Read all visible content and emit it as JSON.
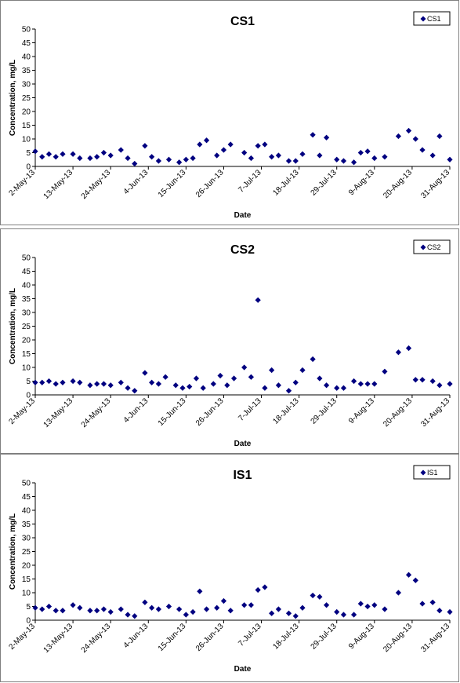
{
  "chart_data": [
    {
      "type": "scatter",
      "title": "CS1",
      "xlabel": "Date",
      "ylabel": "Concentration, mg/L",
      "ylim": [
        0,
        50
      ],
      "yticks": [
        0,
        5,
        10,
        15,
        20,
        25,
        30,
        35,
        40,
        45,
        50
      ],
      "xlim": [
        "2013-05-02",
        "2013-08-31"
      ],
      "xticks": [
        "2-May-13",
        "13-May-13",
        "24-May-13",
        "4-Jun-13",
        "15-Jun-13",
        "26-Jun-13",
        "7-Jul-13",
        "18-Jul-13",
        "29-Jul-13",
        "9-Aug-13",
        "20-Aug-13",
        "31-Aug-13"
      ],
      "grid": false,
      "legend": "top-right",
      "marker_color": "#000080",
      "series": [
        {
          "name": "CS1",
          "x": [
            "2013-05-02",
            "2013-05-04",
            "2013-05-06",
            "2013-05-08",
            "2013-05-10",
            "2013-05-13",
            "2013-05-15",
            "2013-05-18",
            "2013-05-20",
            "2013-05-22",
            "2013-05-24",
            "2013-05-27",
            "2013-05-29",
            "2013-05-31",
            "2013-06-03",
            "2013-06-05",
            "2013-06-07",
            "2013-06-10",
            "2013-06-13",
            "2013-06-15",
            "2013-06-17",
            "2013-06-19",
            "2013-06-21",
            "2013-06-24",
            "2013-06-26",
            "2013-06-28",
            "2013-07-02",
            "2013-07-04",
            "2013-07-06",
            "2013-07-08",
            "2013-07-10",
            "2013-07-12",
            "2013-07-15",
            "2013-07-17",
            "2013-07-19",
            "2013-07-22",
            "2013-07-24",
            "2013-07-26",
            "2013-07-29",
            "2013-07-31",
            "2013-08-03",
            "2013-08-05",
            "2013-08-07",
            "2013-08-09",
            "2013-08-12",
            "2013-08-16",
            "2013-08-19",
            "2013-08-21",
            "2013-08-23",
            "2013-08-26",
            "2013-08-28",
            "2013-08-31"
          ],
          "y": [
            5.5,
            3.5,
            4.5,
            3.5,
            4.5,
            4.5,
            3,
            3,
            3.5,
            5,
            4,
            6,
            3,
            1,
            7.5,
            3.5,
            2,
            2.5,
            1.5,
            2.5,
            3,
            8,
            9.5,
            4,
            6,
            8,
            5,
            3,
            7.5,
            8,
            3.5,
            4,
            2,
            2,
            4.5,
            11.5,
            4,
            10.5,
            2.5,
            2,
            1.5,
            5,
            5.5,
            3,
            3.5,
            11,
            13,
            10,
            6,
            4,
            11,
            2.5
          ]
        }
      ]
    },
    {
      "type": "scatter",
      "title": "CS2",
      "xlabel": "Date",
      "ylabel": "Concentration, mg/L",
      "ylim": [
        0,
        50
      ],
      "yticks": [
        0,
        5,
        10,
        15,
        20,
        25,
        30,
        35,
        40,
        45,
        50
      ],
      "xlim": [
        "2013-05-02",
        "2013-08-31"
      ],
      "xticks": [
        "2-May-13",
        "13-May-13",
        "24-May-13",
        "4-Jun-13",
        "15-Jun-13",
        "26-Jun-13",
        "7-Jul-13",
        "18-Jul-13",
        "29-Jul-13",
        "9-Aug-13",
        "20-Aug-13",
        "31-Aug-13"
      ],
      "grid": false,
      "legend": "top-right",
      "marker_color": "#000080",
      "series": [
        {
          "name": "CS2",
          "x": [
            "2013-05-02",
            "2013-05-04",
            "2013-05-06",
            "2013-05-08",
            "2013-05-10",
            "2013-05-13",
            "2013-05-15",
            "2013-05-18",
            "2013-05-20",
            "2013-05-22",
            "2013-05-24",
            "2013-05-27",
            "2013-05-29",
            "2013-05-31",
            "2013-06-03",
            "2013-06-05",
            "2013-06-07",
            "2013-06-09",
            "2013-06-12",
            "2013-06-14",
            "2013-06-16",
            "2013-06-18",
            "2013-06-20",
            "2013-06-23",
            "2013-06-25",
            "2013-06-27",
            "2013-06-29",
            "2013-07-02",
            "2013-07-04",
            "2013-07-06",
            "2013-07-08",
            "2013-07-10",
            "2013-07-12",
            "2013-07-15",
            "2013-07-17",
            "2013-07-19",
            "2013-07-22",
            "2013-07-24",
            "2013-07-26",
            "2013-07-29",
            "2013-07-31",
            "2013-08-03",
            "2013-08-05",
            "2013-08-07",
            "2013-08-09",
            "2013-08-12",
            "2013-08-16",
            "2013-08-19",
            "2013-08-21",
            "2013-08-23",
            "2013-08-26",
            "2013-08-28",
            "2013-08-31"
          ],
          "y": [
            4.5,
            4.5,
            5,
            4,
            4.5,
            5,
            4.5,
            3.5,
            4,
            4,
            3.5,
            4.5,
            2.5,
            1.5,
            8,
            4.5,
            4,
            6.5,
            3.5,
            2.5,
            3,
            6,
            2.5,
            4,
            7,
            3.5,
            6,
            10,
            6.5,
            34.5,
            2.5,
            9,
            3.5,
            1.5,
            4.5,
            9,
            13,
            6,
            3.5,
            2.5,
            2.5,
            5,
            4,
            4,
            4,
            8.5,
            15.5,
            17,
            5.5,
            5.5,
            5,
            3.5,
            4
          ]
        }
      ]
    },
    {
      "type": "scatter",
      "title": "IS1",
      "xlabel": "Date",
      "ylabel": "Concentration, mg/L",
      "ylim": [
        0,
        50
      ],
      "yticks": [
        0,
        5,
        10,
        15,
        20,
        25,
        30,
        35,
        40,
        45,
        50
      ],
      "xlim": [
        "2013-05-02",
        "2013-08-31"
      ],
      "xticks": [
        "2-May-13",
        "13-May-13",
        "24-May-13",
        "4-Jun-13",
        "15-Jun-13",
        "26-Jun-13",
        "7-Jul-13",
        "18-Jul-13",
        "29-Jul-13",
        "9-Aug-13",
        "20-Aug-13",
        "31-Aug-13"
      ],
      "grid": false,
      "legend": "top-right",
      "marker_color": "#000080",
      "series": [
        {
          "name": "IS1",
          "x": [
            "2013-05-02",
            "2013-05-04",
            "2013-05-06",
            "2013-05-08",
            "2013-05-10",
            "2013-05-13",
            "2013-05-15",
            "2013-05-18",
            "2013-05-20",
            "2013-05-22",
            "2013-05-24",
            "2013-05-27",
            "2013-05-29",
            "2013-05-31",
            "2013-06-03",
            "2013-06-05",
            "2013-06-07",
            "2013-06-10",
            "2013-06-13",
            "2013-06-15",
            "2013-06-17",
            "2013-06-19",
            "2013-06-21",
            "2013-06-24",
            "2013-06-26",
            "2013-06-28",
            "2013-07-02",
            "2013-07-04",
            "2013-07-06",
            "2013-07-08",
            "2013-07-10",
            "2013-07-12",
            "2013-07-15",
            "2013-07-17",
            "2013-07-19",
            "2013-07-22",
            "2013-07-24",
            "2013-07-26",
            "2013-07-29",
            "2013-07-31",
            "2013-08-03",
            "2013-08-05",
            "2013-08-07",
            "2013-08-09",
            "2013-08-12",
            "2013-08-16",
            "2013-08-19",
            "2013-08-21",
            "2013-08-23",
            "2013-08-26",
            "2013-08-28",
            "2013-08-31"
          ],
          "y": [
            4.5,
            4,
            5,
            3.5,
            3.5,
            5.5,
            4.5,
            3.5,
            3.5,
            4,
            3,
            4,
            2,
            1.5,
            6.5,
            4.5,
            4,
            5,
            4,
            2,
            3,
            10.5,
            4,
            4.5,
            7,
            3.5,
            5.5,
            5.5,
            11,
            12,
            2.5,
            4,
            2.5,
            1.5,
            4.5,
            9,
            8.5,
            5.5,
            3,
            2,
            2,
            6,
            5,
            5.5,
            4,
            10,
            16.5,
            14.5,
            6,
            6.5,
            3.5,
            3
          ]
        }
      ]
    }
  ]
}
